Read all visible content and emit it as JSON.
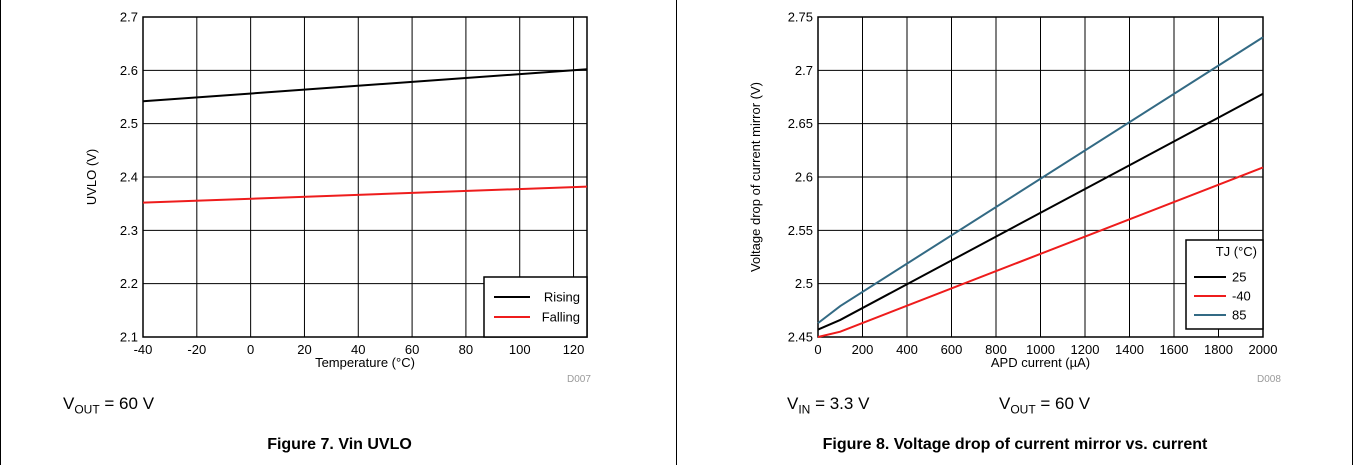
{
  "chart_data": [
    {
      "type": "line",
      "xlabel": "Temperature (°C)",
      "ylabel": "UVLO (V)",
      "xlim": [
        -40,
        125
      ],
      "ylim": [
        2.1,
        2.7
      ],
      "xticks": [
        "-40",
        "-20",
        "0",
        "20",
        "40",
        "60",
        "80",
        "100",
        "120"
      ],
      "yticks": [
        "2.1",
        "2.2",
        "2.3",
        "2.4",
        "2.5",
        "2.6",
        "2.7"
      ],
      "grid": true,
      "legend_position": "bottom-right",
      "series": [
        {
          "name": "Rising",
          "color": "#000000",
          "x": [
            -40,
            125
          ],
          "y": [
            2.542,
            2.602
          ]
        },
        {
          "name": "Falling",
          "color": "#ee1c1c",
          "x": [
            -40,
            125
          ],
          "y": [
            2.352,
            2.382
          ]
        }
      ],
      "code": "D007"
    },
    {
      "type": "line",
      "xlabel": "APD current  (µA)",
      "ylabel": "Voltage drop of current mirror (V)",
      "xlim": [
        0,
        2000
      ],
      "ylim": [
        2.45,
        2.75
      ],
      "xticks": [
        "0",
        "200",
        "400",
        "600",
        "800",
        "1000",
        "1200",
        "1400",
        "1600",
        "1800",
        "2000"
      ],
      "yticks": [
        "2.45",
        "2.5",
        "2.55",
        "2.6",
        "2.65",
        "2.7",
        "2.75"
      ],
      "grid": true,
      "legend_title": "TJ (°C)",
      "legend_position": "bottom-right",
      "series": [
        {
          "name": "25",
          "color": "#000000",
          "x": [
            0,
            100,
            2000
          ],
          "y": [
            2.457,
            2.466,
            2.678
          ]
        },
        {
          "name": "-40",
          "color": "#ee1c1c",
          "x": [
            0,
            100,
            2000
          ],
          "y": [
            2.45,
            2.455,
            2.609
          ]
        },
        {
          "name": "85",
          "color": "#336a84",
          "x": [
            0,
            100,
            2000
          ],
          "y": [
            2.463,
            2.479,
            2.731
          ]
        }
      ],
      "code": "D008"
    }
  ],
  "conditions": {
    "left": {
      "v": "V",
      "sub": "OUT",
      "rest": " = 60 V"
    },
    "right_in": {
      "v": "V",
      "sub": "IN",
      "rest": " = 3.3 V"
    },
    "right_out": {
      "v": "V",
      "sub": "OUT",
      "rest": " = 60 V"
    }
  },
  "captions": {
    "left": "Figure 7. Vin UVLO",
    "right": "Figure 8. Voltage drop of current mirror vs. current"
  }
}
